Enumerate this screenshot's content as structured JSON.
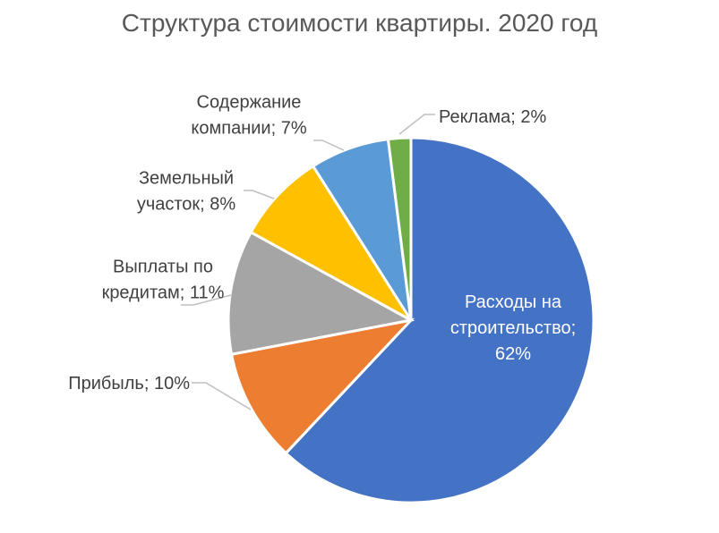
{
  "chart_data": {
    "type": "pie",
    "title": "Структура стоимости квартиры. 2020 год",
    "slices": [
      {
        "name": "Расходы на строительство",
        "value": 62,
        "color": "#4472C4",
        "label_lines": [
          "Расходы на",
          "строительство;",
          "62%"
        ]
      },
      {
        "name": "Прибыль",
        "value": 10,
        "color": "#ED7D31",
        "label_lines": [
          "Прибыль; 10%"
        ]
      },
      {
        "name": "Выплаты по кредитам",
        "value": 11,
        "color": "#A5A5A5",
        "label_lines": [
          "Выплаты по",
          "кредитам; 11%"
        ]
      },
      {
        "name": "Земельный участок",
        "value": 8,
        "color": "#FFC000",
        "label_lines": [
          "Земельный",
          "участок; 8%"
        ]
      },
      {
        "name": "Содержание компании",
        "value": 7,
        "color": "#5B9BD5",
        "label_lines": [
          "Содержание",
          "компании; 7%"
        ]
      },
      {
        "name": "Реклама",
        "value": 2,
        "color": "#70AD47",
        "label_lines": [
          "Реклама; 2%"
        ]
      }
    ],
    "legend": "none"
  }
}
